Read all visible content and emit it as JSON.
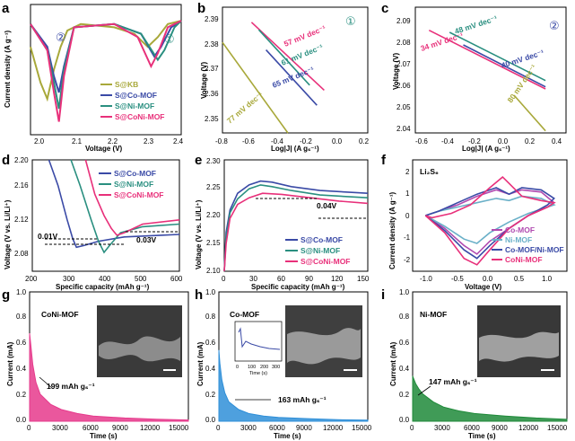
{
  "colors": {
    "kb": "#a8a83a",
    "co": "#3a4aa6",
    "ni": "#2a8f80",
    "coni": "#e8307a",
    "co_mof_f": "#b04ab0",
    "ni_mof_f": "#6ab0c8",
    "coni_mof_f": "#e8307a",
    "coni_fill": "#e63a8c",
    "co_fill": "#2f8fd8",
    "ni_fill": "#1f8a3a"
  },
  "panels": [
    {
      "id": "a",
      "label": "a",
      "xlabel": "Voltage (V)",
      "ylabel": "Current density (A g⁻¹)",
      "xticks": [
        "2.0",
        "2.1",
        "2.2",
        "2.3",
        "2.4"
      ],
      "legend": [
        "S@KB",
        "S@Co-MOF",
        "S@Ni-MOF",
        "S@CoNi-MOF"
      ],
      "markers": [
        "②",
        "①"
      ]
    },
    {
      "id": "b",
      "label": "b",
      "xlabel": "Log|J| (A gₛ⁻¹)",
      "ylabel": "Voltage (V)",
      "xticks": [
        "-0.8",
        "-0.6",
        "-0.4",
        "-0.2",
        "0.0",
        "0.2"
      ],
      "yticks": [
        "2.35",
        "2.36",
        "2.37",
        "2.38",
        "2.39"
      ],
      "marker": "①",
      "slopes": [
        "57 mV dec⁻¹",
        "61 mV dec⁻¹",
        "65 mV dec⁻¹",
        "77 mV dec⁻¹"
      ]
    },
    {
      "id": "c",
      "label": "c",
      "xlabel": "Log|J| (A gₛ⁻¹)",
      "ylabel": "Voltage (V)",
      "xticks": [
        "-0.6",
        "-0.4",
        "-0.2",
        "0.0",
        "0.2",
        "0.4"
      ],
      "yticks": [
        "2.04",
        "2.05",
        "2.06",
        "2.07",
        "2.08",
        "2.09"
      ],
      "marker": "②",
      "slopes": [
        "48 mV dec⁻¹",
        "34 mV dec⁻¹",
        "40 mV dec⁻¹",
        "80 mV dec⁻¹"
      ]
    },
    {
      "id": "d",
      "label": "d",
      "xlabel": "Specific capacity (mAh g⁻¹)",
      "ylabel": "Voltage (V vs. Li/Li⁺)",
      "xticks": [
        "200",
        "300",
        "400",
        "500",
        "600"
      ],
      "yticks": [
        "2.08",
        "2.12",
        "2.16",
        "2.20"
      ],
      "legend": [
        "S@Co-MOF",
        "S@Ni-MOF",
        "S@CoNi-MOF"
      ],
      "annotations": [
        "0.01V",
        "0.03V"
      ]
    },
    {
      "id": "e",
      "label": "e",
      "xlabel": "Specific capacity (mAh g⁻¹)",
      "ylabel": "Voltage (V vs. Li/Li⁺)",
      "xticks": [
        "0",
        "30",
        "60",
        "90",
        "120",
        "150"
      ],
      "yticks": [
        "2.10",
        "2.15",
        "2.20",
        "2.25",
        "2.30"
      ],
      "legend": [
        "S@Co-MOF",
        "S@Ni-MOF",
        "S@CoNi-MOF"
      ],
      "annotations": [
        "0.04V"
      ]
    },
    {
      "id": "f",
      "label": "f",
      "xlabel": "Voltage (V)",
      "ylabel": "Current density (A g⁻¹)",
      "xticks": [
        "-1.0",
        "-0.5",
        "0.0",
        "0.5",
        "1.0"
      ],
      "yticks": [
        "-2",
        "-1",
        "0",
        "1",
        "2"
      ],
      "title": "Li₂S₆",
      "legend": [
        "Co-MOF",
        "Ni-MOF",
        "Co-MOF/Ni-MOF",
        "CoNi-MOF"
      ]
    },
    {
      "id": "g",
      "label": "g",
      "xlabel": "Time (s)",
      "ylabel": "Current (mA)",
      "xticks": [
        "0",
        "3000",
        "6000",
        "9000",
        "12000",
        "15000"
      ],
      "yticks": [
        "0.0",
        "0.2",
        "0.4",
        "0.6",
        "0.8",
        "1.0"
      ],
      "name": "CoNi-MOF",
      "capacity": "199 mAh gₛ⁻¹"
    },
    {
      "id": "h",
      "label": "h",
      "xlabel": "Time (s)",
      "ylabel": "Current (mA)",
      "xticks": [
        "0",
        "3000",
        "6000",
        "9000",
        "12000",
        "15000"
      ],
      "yticks": [
        "0.0",
        "0.2",
        "0.4",
        "0.6",
        "0.8",
        "1.0"
      ],
      "name": "Co-MOF",
      "capacity": "163 mAh gₛ⁻¹",
      "inset_xlabel": "Time (s)",
      "inset_xticks": [
        "0",
        "100",
        "200",
        "300"
      ]
    },
    {
      "id": "i",
      "label": "i",
      "xlabel": "Time (s)",
      "ylabel": "Current (mA)",
      "xticks": [
        "0",
        "3000",
        "6000",
        "9000",
        "12000",
        "15000"
      ],
      "yticks": [
        "0.0",
        "0.2",
        "0.4",
        "0.6",
        "0.8",
        "1.0"
      ],
      "name": "Ni-MOF",
      "capacity": "147 mAh gₛ⁻¹"
    }
  ],
  "chart_data": [
    {
      "type": "line",
      "panel": "a",
      "xlim": [
        1.95,
        2.4
      ],
      "series": [
        {
          "name": "S@KB",
          "x": [
            1.95,
            1.98,
            2.0,
            2.02,
            2.04,
            2.06,
            2.1,
            2.2,
            2.26,
            2.3,
            2.33,
            2.36,
            2.4
          ],
          "y": [
            -0.9,
            -2.0,
            -2.5,
            -1.6,
            -0.9,
            -0.4,
            -0.2,
            -0.3,
            -0.5,
            -0.9,
            -0.6,
            -0.2,
            -0.1
          ]
        },
        {
          "name": "S@Co-MOF",
          "x": [
            1.95,
            2.0,
            2.02,
            2.035,
            2.05,
            2.08,
            2.2,
            2.28,
            2.32,
            2.34,
            2.37,
            2.4
          ],
          "y": [
            -0.2,
            -0.9,
            -1.8,
            -2.3,
            -1.5,
            -0.3,
            -0.2,
            -0.5,
            -1.2,
            -0.9,
            -0.3,
            -0.1
          ]
        },
        {
          "name": "S@Ni-MOF",
          "x": [
            1.95,
            2.0,
            2.02,
            2.035,
            2.05,
            2.08,
            2.2,
            2.28,
            2.33,
            2.35,
            2.38,
            2.4
          ],
          "y": [
            -0.2,
            -1.0,
            -2.0,
            -2.8,
            -1.6,
            -0.3,
            -0.2,
            -0.5,
            -1.3,
            -1.0,
            -0.3,
            -0.1
          ]
        },
        {
          "name": "S@CoNi-MOF",
          "x": [
            1.95,
            2.0,
            2.02,
            2.035,
            2.05,
            2.08,
            2.2,
            2.27,
            2.31,
            2.33,
            2.36,
            2.4
          ],
          "y": [
            -0.2,
            -1.0,
            -2.3,
            -3.2,
            -1.8,
            -0.3,
            -0.2,
            -0.6,
            -1.5,
            -1.1,
            -0.3,
            -0.1
          ]
        }
      ]
    },
    {
      "type": "line",
      "panel": "b",
      "xlim": [
        -0.8,
        0.2
      ],
      "ylim": [
        2.345,
        2.395
      ],
      "series": [
        {
          "x": [
            -0.6,
            -0.1
          ],
          "y": [
            2.389,
            2.362
          ]
        },
        {
          "x": [
            -0.55,
            -0.2
          ],
          "y": [
            2.386,
            2.364
          ]
        },
        {
          "x": [
            -0.5,
            -0.15
          ],
          "y": [
            2.378,
            2.356
          ]
        },
        {
          "x": [
            -0.8,
            -0.35
          ],
          "y": [
            2.381,
            2.345
          ]
        }
      ]
    },
    {
      "type": "line",
      "panel": "c",
      "xlim": [
        -0.7,
        0.4
      ],
      "ylim": [
        2.035,
        2.095
      ],
      "series": [
        {
          "x": [
            -0.45,
            0.25
          ],
          "y": [
            2.083,
            2.06
          ]
        },
        {
          "x": [
            -0.6,
            0.25
          ],
          "y": [
            2.084,
            2.056
          ]
        },
        {
          "x": [
            -0.35,
            0.25
          ],
          "y": [
            2.077,
            2.057
          ]
        },
        {
          "x": [
            0.02,
            0.25
          ],
          "y": [
            2.053,
            2.036
          ]
        }
      ]
    },
    {
      "type": "line",
      "panel": "d",
      "xlim": [
        200,
        600
      ],
      "ylim": [
        2.07,
        2.2
      ],
      "series": [
        {
          "name": "S@Co-MOF",
          "x": [
            245,
            270,
            295,
            310,
            320,
            340,
            380,
            450,
            550,
            600
          ],
          "y": [
            2.2,
            2.17,
            2.13,
            2.108,
            2.098,
            2.1,
            2.105,
            2.11,
            2.112,
            2.113
          ]
        },
        {
          "name": "S@Ni-MOF",
          "x": [
            305,
            330,
            360,
            380,
            395,
            410,
            440,
            500,
            600
          ],
          "y": [
            2.2,
            2.17,
            2.13,
            2.105,
            2.092,
            2.1,
            2.115,
            2.122,
            2.125
          ]
        },
        {
          "name": "S@CoNi-MOF",
          "x": [
            345,
            370,
            395,
            415,
            430,
            450,
            500,
            600
          ],
          "y": [
            2.2,
            2.16,
            2.135,
            2.12,
            2.112,
            2.115,
            2.125,
            2.13
          ]
        }
      ]
    },
    {
      "type": "line",
      "panel": "e",
      "xlim": [
        0,
        150
      ],
      "ylim": [
        2.1,
        2.3
      ],
      "series": [
        {
          "name": "S@Co-MOF",
          "x": [
            0,
            2,
            6,
            14,
            26,
            38,
            50,
            70,
            100,
            150
          ],
          "y": [
            2.1,
            2.17,
            2.21,
            2.24,
            2.255,
            2.262,
            2.26,
            2.252,
            2.245,
            2.24
          ]
        },
        {
          "name": "S@Ni-MOF",
          "x": [
            0,
            2,
            6,
            14,
            26,
            38,
            50,
            70,
            100,
            150
          ],
          "y": [
            2.1,
            2.16,
            2.205,
            2.23,
            2.248,
            2.255,
            2.252,
            2.245,
            2.237,
            2.232
          ]
        },
        {
          "name": "S@CoNi-MOF",
          "x": [
            0,
            2,
            6,
            14,
            26,
            40,
            60,
            90,
            120,
            150
          ],
          "y": [
            2.1,
            2.15,
            2.195,
            2.22,
            2.232,
            2.24,
            2.238,
            2.232,
            2.226,
            2.222
          ]
        }
      ]
    },
    {
      "type": "line",
      "panel": "f",
      "xlim": [
        -1.2,
        1.2
      ],
      "ylim": [
        -2.6,
        2.6
      ],
      "series": [
        {
          "name": "Co-MOF",
          "x": [
            -1.0,
            -0.7,
            -0.4,
            -0.2,
            0.0,
            0.3,
            0.6,
            0.9,
            1.0,
            0.8,
            0.5,
            0.3,
            0.1,
            -0.2,
            -0.5,
            -0.8,
            -1.0
          ],
          "y": [
            0.0,
            -0.6,
            -1.4,
            -1.8,
            -1.2,
            -0.6,
            0.0,
            0.4,
            0.6,
            1.1,
            1.2,
            1.0,
            1.2,
            0.9,
            0.5,
            0.2,
            0.0
          ]
        },
        {
          "name": "Ni-MOF",
          "x": [
            -1.0,
            -0.7,
            -0.4,
            -0.2,
            0.0,
            0.3,
            0.6,
            0.9,
            1.0,
            0.8,
            0.5,
            0.3,
            0.1,
            -0.2,
            -0.5,
            -0.8,
            -1.0
          ],
          "y": [
            0.0,
            -0.5,
            -1.1,
            -1.3,
            -0.8,
            -0.3,
            0.1,
            0.4,
            0.5,
            0.8,
            0.9,
            0.7,
            0.8,
            0.6,
            0.4,
            0.2,
            0.0
          ]
        },
        {
          "name": "Co-MOF/Ni-MOF",
          "x": [
            -1.0,
            -0.7,
            -0.4,
            -0.2,
            0.0,
            0.3,
            0.6,
            0.9,
            1.0,
            0.8,
            0.5,
            0.3,
            0.1,
            -0.2,
            -0.5,
            -0.8,
            -1.0
          ],
          "y": [
            0.0,
            -0.7,
            -1.6,
            -2.0,
            -1.4,
            -0.6,
            0.0,
            0.5,
            0.8,
            1.2,
            1.3,
            1.0,
            1.3,
            1.0,
            0.6,
            0.2,
            0.0
          ]
        },
        {
          "name": "CoNi-MOF",
          "x": [
            -1.0,
            -0.7,
            -0.4,
            -0.2,
            0.0,
            0.3,
            0.6,
            0.9,
            1.0,
            0.8,
            0.5,
            0.3,
            0.2,
            0.0,
            -0.3,
            -0.6,
            -0.9,
            -1.0
          ],
          "y": [
            0.0,
            -0.8,
            -2.0,
            -2.3,
            -1.6,
            -0.6,
            0.0,
            0.4,
            0.6,
            0.7,
            0.9,
            1.5,
            1.8,
            1.3,
            0.5,
            0.1,
            -0.1,
            0.0
          ]
        }
      ]
    },
    {
      "type": "area",
      "panel": "g",
      "xlim": [
        0,
        15000
      ],
      "ylim": [
        0,
        1.0
      ],
      "series": [
        {
          "name": "CoNi-MOF",
          "x": [
            0,
            100,
            300,
            600,
            1000,
            2000,
            3000,
            4500,
            6000,
            9000,
            12000,
            15000
          ],
          "y": [
            0.68,
            0.6,
            0.44,
            0.3,
            0.21,
            0.13,
            0.09,
            0.06,
            0.04,
            0.025,
            0.015,
            0.01
          ]
        }
      ]
    },
    {
      "type": "area",
      "panel": "h",
      "xlim": [
        0,
        15000
      ],
      "ylim": [
        0,
        1.0
      ],
      "series": [
        {
          "name": "Co-MOF",
          "x": [
            0,
            100,
            300,
            600,
            1000,
            2000,
            3000,
            4500,
            6000,
            9000,
            12000,
            15000
          ],
          "y": [
            0.55,
            0.45,
            0.32,
            0.22,
            0.15,
            0.09,
            0.06,
            0.04,
            0.03,
            0.02,
            0.012,
            0.008
          ]
        }
      ]
    },
    {
      "type": "area",
      "panel": "i",
      "xlim": [
        0,
        15000
      ],
      "ylim": [
        0,
        1.0
      ],
      "series": [
        {
          "name": "Ni-MOF",
          "x": [
            0,
            100,
            300,
            600,
            1000,
            2000,
            3000,
            4500,
            6000,
            9000,
            12000,
            15000
          ],
          "y": [
            0.35,
            0.33,
            0.29,
            0.25,
            0.21,
            0.15,
            0.11,
            0.08,
            0.06,
            0.04,
            0.025,
            0.015
          ]
        }
      ]
    }
  ]
}
